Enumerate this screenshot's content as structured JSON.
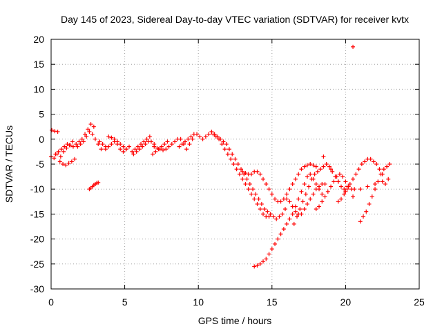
{
  "chart_data": {
    "type": "scatter",
    "title": "Day 145 of 2023, Sidereal Day-to-day VTEC variation (SDTVAR) for receiver kvtx",
    "xlabel": "GPS time / hours",
    "ylabel": "SDTVAR / TECUs",
    "xlim": [
      0,
      25
    ],
    "ylim": [
      -30,
      20
    ],
    "xticks": [
      0,
      5,
      10,
      15,
      20,
      25
    ],
    "yticks": [
      20,
      15,
      10,
      5,
      0,
      -5,
      -10,
      -15,
      -20,
      -25,
      -30
    ],
    "grid": true,
    "marker": "+",
    "series_color": "#ff0000",
    "series": [
      {
        "name": "kvtx",
        "x": [
          0.0,
          0.2,
          0.4,
          0.05,
          0.25,
          0.45,
          0.65,
          0.85,
          1.05,
          1.25,
          1.45,
          0.6,
          0.8,
          1.0,
          1.2,
          1.4,
          1.6,
          0.3,
          0.5,
          0.7,
          0.9,
          1.1,
          1.3,
          1.5,
          1.7,
          1.9,
          2.1,
          2.3,
          2.5,
          2.7,
          2.9,
          1.8,
          2.0,
          2.2,
          2.4,
          2.6,
          2.8,
          3.0,
          3.2,
          3.4,
          3.3,
          3.5,
          3.7,
          2.6,
          2.7,
          2.8,
          2.9,
          3.0,
          3.1,
          3.2,
          3.9,
          4.1,
          4.3,
          4.5,
          4.7,
          4.9,
          5.1,
          5.3,
          3.7,
          3.9,
          4.1,
          4.3,
          4.5,
          4.7,
          4.9,
          5.1,
          5.5,
          5.7,
          5.9,
          6.1,
          6.3,
          6.5,
          6.7,
          5.6,
          5.8,
          6.0,
          6.2,
          6.4,
          6.6,
          6.8,
          7.0,
          6.9,
          7.1,
          7.3,
          7.5,
          7.7,
          7.9,
          7.0,
          7.2,
          7.4,
          7.6,
          7.8,
          8.0,
          8.2,
          8.4,
          8.6,
          8.8,
          9.0,
          9.2,
          9.4,
          9.6,
          8.7,
          8.9,
          9.1,
          9.3,
          9.5,
          9.7,
          9.9,
          10.1,
          10.3,
          10.5,
          10.7,
          10.9,
          11.1,
          11.3,
          11.5,
          11.7,
          11.9,
          12.1,
          12.3,
          12.5,
          12.7,
          12.9,
          13.1,
          13.3,
          13.5,
          13.7,
          13.9,
          14.1,
          14.3,
          14.5,
          14.7,
          14.9,
          15.1,
          15.3,
          15.5,
          15.7,
          15.9,
          11.0,
          11.2,
          11.4,
          11.6,
          11.8,
          12.0,
          12.2,
          12.4,
          12.6,
          12.8,
          13.0,
          13.2,
          13.4,
          13.6,
          13.8,
          14.0,
          14.2,
          14.4,
          14.6,
          14.8,
          13.0,
          13.2,
          13.4,
          13.6,
          13.8,
          14.0,
          14.2,
          14.4,
          14.6,
          14.8,
          15.0,
          15.2,
          15.4,
          15.6,
          15.8,
          16.0,
          16.2,
          16.4,
          16.6,
          16.8,
          17.0,
          17.2,
          17.4,
          17.6,
          17.8,
          18.0,
          13.8,
          14.0,
          14.2,
          14.4,
          14.6,
          14.8,
          15.0,
          15.2,
          15.4,
          15.6,
          15.8,
          16.0,
          16.2,
          16.4,
          16.6,
          16.8,
          17.0,
          17.2,
          17.4,
          17.6,
          17.8,
          18.0,
          18.2,
          18.4,
          16.0,
          16.2,
          16.4,
          16.6,
          16.8,
          17.0,
          17.2,
          17.4,
          17.6,
          17.8,
          18.0,
          18.2,
          18.4,
          18.6,
          16.5,
          16.7,
          16.9,
          17.1,
          17.3,
          17.5,
          17.7,
          17.9,
          18.1,
          18.3,
          18.5,
          18.7,
          18.9,
          19.1,
          19.3,
          19.5,
          19.7,
          19.9,
          20.1,
          18.0,
          18.2,
          18.4,
          18.6,
          18.8,
          19.0,
          19.2,
          19.4,
          19.6,
          19.8,
          20.0,
          20.2,
          20.4,
          20.6,
          18.5,
          19.0,
          19.5,
          20.0,
          20.5,
          21.0,
          21.5,
          22.0,
          22.5,
          22.7,
          22.9,
          19.5,
          19.7,
          19.9,
          20.1,
          20.3,
          20.5,
          20.7,
          20.9,
          21.1,
          21.3,
          21.5,
          21.7,
          21.9,
          22.1,
          22.3,
          22.5,
          21.0,
          21.2,
          21.4,
          21.6,
          21.8,
          22.0,
          22.2,
          22.4,
          22.6,
          22.8,
          23.0,
          20.5
        ],
        "y": [
          -3.5,
          -3.8,
          -3.0,
          1.8,
          1.6,
          1.5,
          -3.5,
          -2.5,
          -1.8,
          -1.2,
          -0.5,
          -4.5,
          -5.0,
          -5.2,
          -4.8,
          -4.5,
          -4.0,
          -3.0,
          -2.5,
          -2.0,
          -1.5,
          -1.0,
          -1.2,
          -1.5,
          -1.0,
          -0.5,
          0.0,
          1.0,
          2.0,
          3.0,
          2.5,
          -1.5,
          -1.0,
          -0.5,
          0.5,
          1.5,
          1.0,
          0.0,
          -1.0,
          -2.0,
          -0.5,
          -1.0,
          -1.5,
          -10.0,
          -9.8,
          -9.5,
          -9.2,
          -9.0,
          -8.8,
          -8.7,
          0.5,
          0.3,
          0.0,
          -0.5,
          -1.0,
          -1.5,
          -2.0,
          -1.5,
          -2.0,
          -1.5,
          -1.0,
          -0.5,
          -1.0,
          -2.0,
          -2.5,
          -2.0,
          -2.5,
          -2.0,
          -1.5,
          -1.0,
          -0.5,
          0.0,
          0.5,
          -3.0,
          -2.5,
          -2.0,
          -1.5,
          -1.0,
          -0.5,
          -0.5,
          -1.0,
          -3.0,
          -2.5,
          -2.0,
          -1.5,
          -1.0,
          -0.5,
          -1.5,
          -1.8,
          -2.0,
          -2.2,
          -2.0,
          -1.5,
          -1.0,
          -0.5,
          0.0,
          0.0,
          -1.0,
          -2.0,
          -1.0,
          0.0,
          -1.5,
          -1.0,
          -0.5,
          0.0,
          0.5,
          1.0,
          1.0,
          0.5,
          0.0,
          0.5,
          1.0,
          1.5,
          1.0,
          0.5,
          0.0,
          -0.5,
          -1.0,
          -2.0,
          -3.0,
          -4.0,
          -5.0,
          -6.0,
          -7.0,
          -8.0,
          -9.0,
          -10.0,
          -11.0,
          -12.0,
          -13.0,
          -14.0,
          -14.5,
          -15.0,
          -15.5,
          -16.0,
          -15.5,
          -15.0,
          -14.0,
          1.0,
          0.5,
          0.0,
          -1.0,
          -2.0,
          -3.0,
          -4.0,
          -5.0,
          -6.0,
          -7.0,
          -8.0,
          -9.0,
          -10.0,
          -11.0,
          -12.0,
          -13.0,
          -14.0,
          -15.0,
          -15.5,
          -15.5,
          -6.5,
          -6.8,
          -7.0,
          -7.0,
          -6.5,
          -6.5,
          -7.0,
          -8.0,
          -9.0,
          -10.0,
          -11.0,
          -12.0,
          -12.5,
          -12.5,
          -12.0,
          -11.0,
          -10.0,
          -9.0,
          -8.0,
          -7.0,
          -6.0,
          -5.5,
          -5.2,
          -5.0,
          -5.2,
          -5.5,
          -25.5,
          -25.3,
          -25.0,
          -24.5,
          -24.0,
          -23.0,
          -22.0,
          -21.0,
          -20.0,
          -19.0,
          -18.0,
          -17.0,
          -16.0,
          -15.0,
          -13.5,
          -12.0,
          -10.5,
          -9.0,
          -7.5,
          -7.0,
          -8.0,
          -9.0,
          -10.0,
          -11.0,
          -12.0,
          -12.5,
          -13.5,
          -14.5,
          -15.0,
          -15.0,
          -14.0,
          -13.0,
          -12.0,
          -11.0,
          -10.0,
          -9.5,
          -9.0,
          -9.0,
          -17.0,
          -15.5,
          -14.0,
          -12.5,
          -11.0,
          -9.5,
          -8.0,
          -7.0,
          -6.5,
          -6.0,
          -5.5,
          -5.0,
          -5.5,
          -6.5,
          -7.5,
          -8.5,
          -9.5,
          -10.0,
          -9.5,
          -14.0,
          -13.5,
          -12.5,
          -11.5,
          -10.5,
          -9.5,
          -8.5,
          -7.5,
          -7.0,
          -7.5,
          -8.5,
          -9.5,
          -10.0,
          -10.0,
          -3.5,
          -6.0,
          -8.5,
          -10.5,
          -11.5,
          -10.0,
          -9.5,
          -9.0,
          -8.5,
          -9.0,
          -8.0,
          -12.5,
          -12.0,
          -11.0,
          -10.0,
          -9.0,
          -8.0,
          -7.0,
          -6.0,
          -5.0,
          -4.5,
          -4.0,
          -4.0,
          -4.5,
          -5.0,
          -6.0,
          -7.0,
          -16.5,
          -15.5,
          -14.5,
          -13.0,
          -11.5,
          -10.0,
          -8.5,
          -7.0,
          -6.0,
          -5.5,
          -5.0,
          18.5
        ]
      }
    ]
  }
}
